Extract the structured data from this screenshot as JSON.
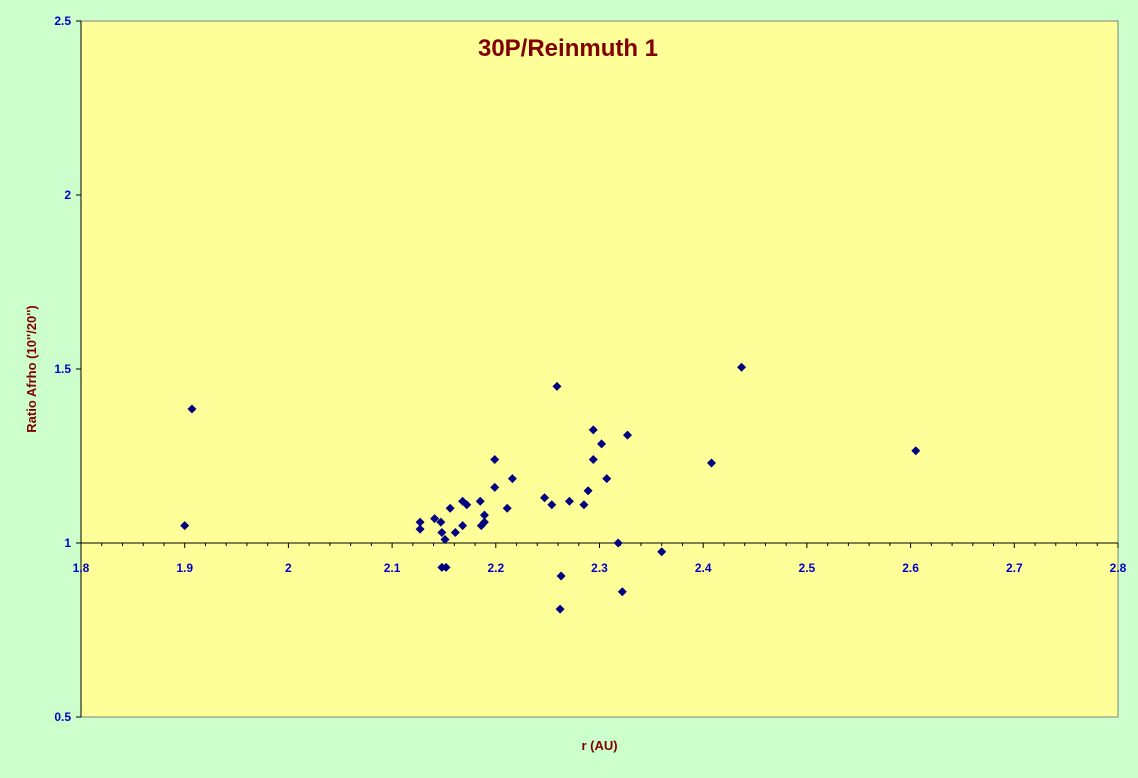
{
  "chart_data": {
    "type": "scatter",
    "title": "30P/Reinmuth 1",
    "xlabel": "r (AU)",
    "ylabel": "Ratio Afrho (10''/20'')",
    "xlim": [
      1.8,
      2.8
    ],
    "ylim": [
      0.5,
      2.5
    ],
    "x_ticks": [
      "1.8",
      "1.9",
      "2",
      "2.1",
      "2.2",
      "2.3",
      "2.4",
      "2.5",
      "2.6",
      "2.7",
      "2.8"
    ],
    "y_ticks": [
      "0.5",
      "1",
      "1.5",
      "2",
      "2.5"
    ],
    "x_axis_crosses_y": 1.0,
    "grid": false,
    "legend": "none",
    "colors": {
      "page_background": "#ccffcc",
      "plot_background": "#ffff99",
      "marker": "#000080",
      "title": "#800000",
      "tick_labels": "#0000cc"
    },
    "series": [
      {
        "marker": "diamond",
        "points": [
          [
            1.9,
            1.05
          ],
          [
            1.907,
            1.385
          ],
          [
            2.127,
            1.06
          ],
          [
            2.127,
            1.04
          ],
          [
            2.141,
            1.07
          ],
          [
            2.147,
            1.06
          ],
          [
            2.148,
            1.03
          ],
          [
            2.151,
            1.01
          ],
          [
            2.156,
            1.1
          ],
          [
            2.161,
            1.03
          ],
          [
            2.168,
            1.12
          ],
          [
            2.168,
            1.05
          ],
          [
            2.172,
            1.11
          ],
          [
            2.185,
            1.12
          ],
          [
            2.186,
            1.05
          ],
          [
            2.189,
            1.06
          ],
          [
            2.189,
            1.08
          ],
          [
            2.199,
            1.24
          ],
          [
            2.199,
            1.16
          ],
          [
            2.211,
            1.1
          ],
          [
            2.216,
            1.185
          ],
          [
            2.247,
            1.13
          ],
          [
            2.254,
            1.11
          ],
          [
            2.259,
            1.45
          ],
          [
            2.271,
            1.12
          ],
          [
            2.285,
            1.11
          ],
          [
            2.289,
            1.15
          ],
          [
            2.294,
            1.325
          ],
          [
            2.294,
            1.24
          ],
          [
            2.302,
            1.285
          ],
          [
            2.307,
            1.185
          ],
          [
            2.327,
            1.31
          ],
          [
            2.318,
            1.0
          ],
          [
            2.36,
            0.975
          ],
          [
            2.408,
            1.23
          ],
          [
            2.437,
            1.505
          ],
          [
            2.605,
            1.265
          ],
          [
            2.148,
            0.93
          ],
          [
            2.152,
            0.93
          ],
          [
            2.263,
            0.905
          ],
          [
            2.262,
            0.81
          ],
          [
            2.322,
            0.86
          ]
        ]
      }
    ]
  }
}
